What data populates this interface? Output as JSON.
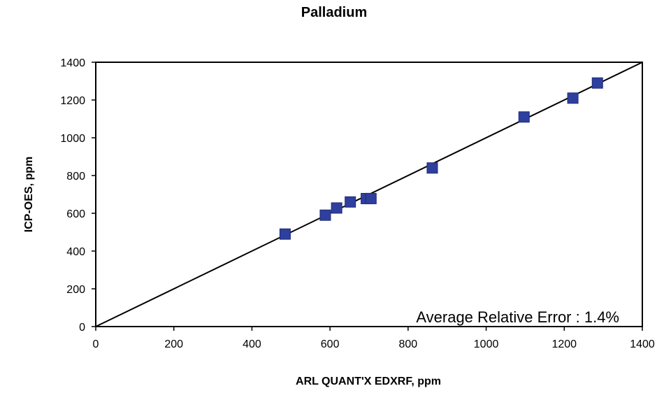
{
  "chart_data": {
    "type": "scatter",
    "title": "Palladium",
    "xlabel": "ARL QUANT'X EDXRF, ppm",
    "ylabel": "ICP-OES, ppm",
    "xlim": [
      0,
      1400
    ],
    "ylim": [
      0,
      1400
    ],
    "xticks": [
      "0",
      "200",
      "400",
      "600",
      "800",
      "1000",
      "1200",
      "1400"
    ],
    "yticks": [
      "0",
      "200",
      "400",
      "600",
      "800",
      "1000",
      "1200",
      "1400"
    ],
    "grid": false,
    "legend": "none",
    "series": [
      {
        "marker": "square",
        "color": "#2e3f9e",
        "points": [
          {
            "x": 485,
            "y": 490
          },
          {
            "x": 588,
            "y": 590
          },
          {
            "x": 617,
            "y": 628
          },
          {
            "x": 652,
            "y": 660
          },
          {
            "x": 693,
            "y": 678
          },
          {
            "x": 705,
            "y": 678
          },
          {
            "x": 862,
            "y": 840
          },
          {
            "x": 1097,
            "y": 1110
          },
          {
            "x": 1222,
            "y": 1210
          },
          {
            "x": 1285,
            "y": 1290
          }
        ]
      }
    ],
    "reference_line": {
      "from": [
        0,
        0
      ],
      "to": [
        1400,
        1400
      ],
      "color": "#000000"
    },
    "annotation": "Average Relative Error : 1.4%"
  }
}
